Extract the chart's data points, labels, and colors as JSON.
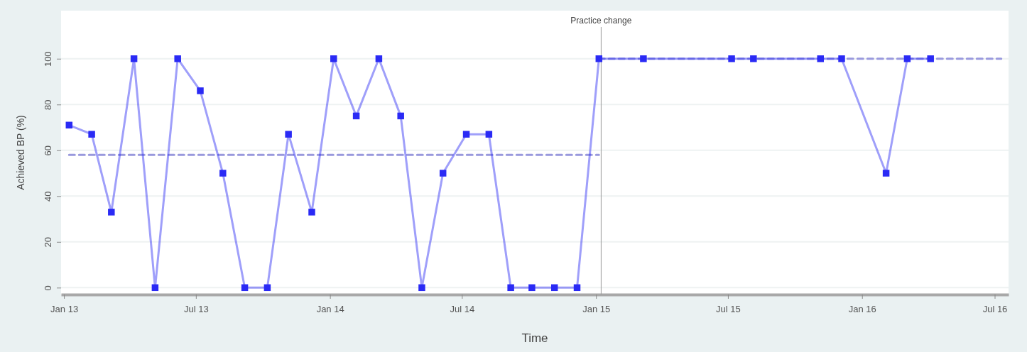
{
  "chart_data": {
    "type": "line",
    "xlabel": "Time",
    "ylabel": "Achieved BP (%)",
    "xlim": [
      "2012-12-28",
      "2016-07-20"
    ],
    "ylim": [
      -3,
      121
    ],
    "xticks": [
      {
        "value": "2013-01-01",
        "label": "Jan 13"
      },
      {
        "value": "2013-07-01",
        "label": "Jul 13"
      },
      {
        "value": "2014-01-01",
        "label": "Jan 14"
      },
      {
        "value": "2014-07-01",
        "label": "Jul 14"
      },
      {
        "value": "2015-01-01",
        "label": "Jan 15"
      },
      {
        "value": "2015-07-01",
        "label": "Jul 15"
      },
      {
        "value": "2016-01-01",
        "label": "Jan 16"
      },
      {
        "value": "2016-07-01",
        "label": "Jul 16"
      }
    ],
    "yticks": [
      0,
      20,
      40,
      60,
      80,
      100
    ],
    "grid": "y",
    "ref_lines": [
      {
        "axis": "x",
        "value": "2015-01-08",
        "label": "Practice change",
        "color": "#999999"
      }
    ],
    "series": [
      {
        "color": "#9999dd",
        "line_style": "dashed",
        "marker": "none",
        "x": [
          "2013-01-08",
          "2015-01-05"
        ],
        "values": [
          58,
          58
        ]
      },
      {
        "color": "#9999dd",
        "line_style": "dashed",
        "marker": "none",
        "x": [
          "2015-01-05",
          "2016-07-10"
        ],
        "values": [
          100,
          100
        ]
      },
      {
        "color": "#2a2af5",
        "line_style": "solid",
        "marker": "square",
        "x": [
          "2013-01-08",
          "2013-02-08",
          "2013-03-07",
          "2013-04-07",
          "2013-05-06",
          "2013-06-06",
          "2013-07-07",
          "2013-08-07",
          "2013-09-06",
          "2013-10-07",
          "2013-11-05",
          "2013-12-07",
          "2014-01-06",
          "2014-02-06",
          "2014-03-09",
          "2014-04-08",
          "2014-05-07",
          "2014-06-05",
          "2014-07-07",
          "2014-08-07",
          "2014-09-06",
          "2014-10-05",
          "2014-11-05",
          "2014-12-06",
          "2015-01-05",
          "2015-03-07",
          "2015-07-06",
          "2015-08-05",
          "2015-11-05",
          "2015-12-04",
          "2016-02-03",
          "2016-03-03",
          "2016-04-04"
        ],
        "values": [
          71,
          67,
          33,
          100,
          0,
          100,
          86,
          50,
          0,
          0,
          67,
          33,
          100,
          75,
          100,
          75,
          0,
          50,
          67,
          67,
          0,
          0,
          0,
          0,
          100,
          100,
          100,
          100,
          100,
          100,
          50,
          100,
          100
        ]
      }
    ]
  }
}
